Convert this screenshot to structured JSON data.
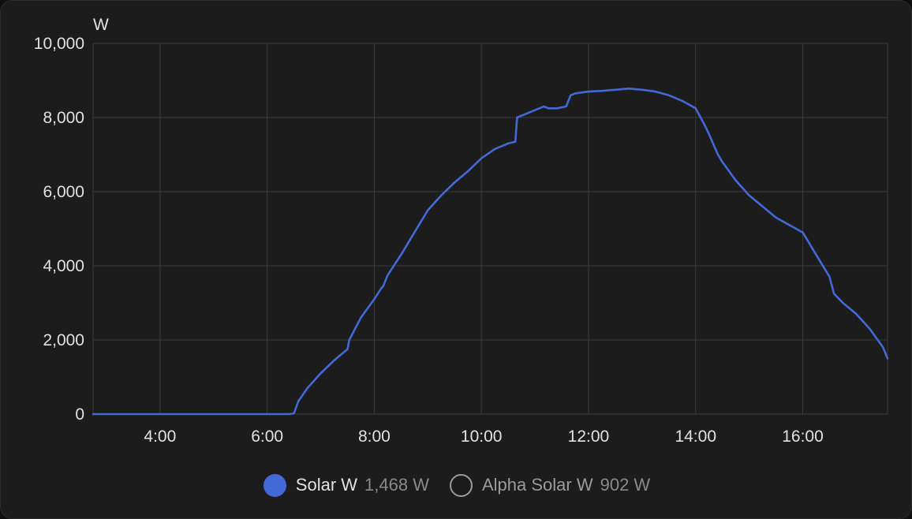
{
  "colors": {
    "background": "#1c1c1c",
    "grid": "#3a3a3a",
    "series_solar": "#4369d6",
    "text": "#e1e1e1",
    "muted_text": "#9b9b9b"
  },
  "chart_data": {
    "type": "line",
    "title": "",
    "ylabel": "W",
    "xlabel": "",
    "unit": "W",
    "xlim": [
      "02:45",
      "17:35"
    ],
    "ylim": [
      0,
      10000
    ],
    "grid": true,
    "legend_position": "bottom",
    "y_ticks": [
      "0",
      "2,000",
      "4,000",
      "6,000",
      "8,000",
      "10,000"
    ],
    "x_ticks": [
      "4:00",
      "6:00",
      "8:00",
      "10:00",
      "12:00",
      "14:00",
      "16:00"
    ],
    "series": [
      {
        "name": "Solar W",
        "color": "#4369d6",
        "legend_value": "1,468 W",
        "visible": true,
        "x": [
          "02:45",
          "04:00",
          "05:00",
          "06:00",
          "06:25",
          "06:30",
          "06:35",
          "06:45",
          "07:00",
          "07:15",
          "07:30",
          "07:32",
          "07:45",
          "08:00",
          "08:08",
          "08:10",
          "08:15",
          "08:30",
          "08:45",
          "09:00",
          "09:15",
          "09:30",
          "09:45",
          "10:00",
          "10:15",
          "10:30",
          "10:38",
          "10:40",
          "10:50",
          "11:00",
          "11:10",
          "11:15",
          "11:25",
          "11:35",
          "11:40",
          "11:45",
          "12:00",
          "12:15",
          "12:30",
          "12:45",
          "13:00",
          "13:15",
          "13:30",
          "13:45",
          "14:00",
          "14:10",
          "14:15",
          "14:25",
          "14:30",
          "14:45",
          "15:00",
          "15:15",
          "15:30",
          "15:45",
          "16:00",
          "16:15",
          "16:30",
          "16:35",
          "16:45",
          "17:00",
          "17:15",
          "17:30",
          "17:35"
        ],
        "values": [
          0,
          0,
          0,
          0,
          0,
          20,
          350,
          700,
          1100,
          1450,
          1750,
          2000,
          2600,
          3100,
          3400,
          3450,
          3750,
          4300,
          4900,
          5500,
          5900,
          6250,
          6550,
          6900,
          7150,
          7300,
          7350,
          8000,
          8100,
          8200,
          8300,
          8250,
          8250,
          8300,
          8600,
          8650,
          8700,
          8720,
          8750,
          8780,
          8750,
          8700,
          8600,
          8450,
          8250,
          7800,
          7550,
          7000,
          6800,
          6300,
          5900,
          5600,
          5300,
          5100,
          4900,
          4300,
          3700,
          3250,
          3000,
          2700,
          2300,
          1800,
          1500
        ]
      },
      {
        "name": "Alpha Solar W",
        "legend_value": "902 W",
        "visible": false
      }
    ]
  }
}
